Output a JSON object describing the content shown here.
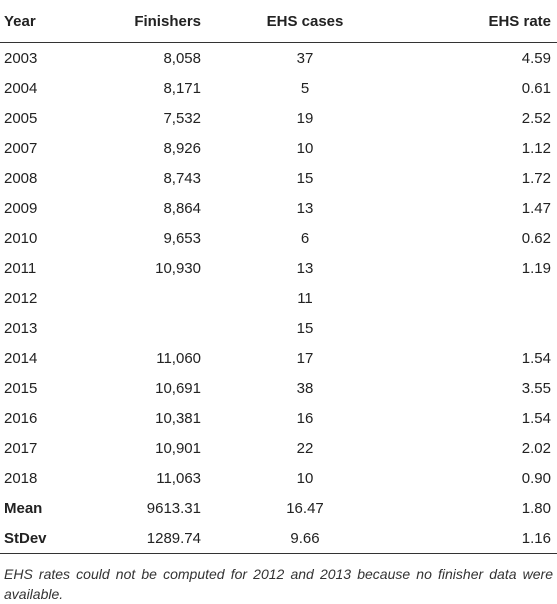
{
  "table": {
    "headers": {
      "year": "Year",
      "finishers": "Finishers",
      "cases": "EHS cases",
      "rate": "EHS rate"
    },
    "rows": [
      {
        "year": "2003",
        "finishers": "8,058",
        "cases": "37",
        "rate": "4.59"
      },
      {
        "year": "2004",
        "finishers": "8,171",
        "cases": "5",
        "rate": "0.61"
      },
      {
        "year": "2005",
        "finishers": "7,532",
        "cases": "19",
        "rate": "2.52"
      },
      {
        "year": "2007",
        "finishers": "8,926",
        "cases": "10",
        "rate": "1.12"
      },
      {
        "year": "2008",
        "finishers": "8,743",
        "cases": "15",
        "rate": "1.72"
      },
      {
        "year": "2009",
        "finishers": "8,864",
        "cases": "13",
        "rate": "1.47"
      },
      {
        "year": "2010",
        "finishers": "9,653",
        "cases": "6",
        "rate": "0.62"
      },
      {
        "year": "2011",
        "finishers": "10,930",
        "cases": "13",
        "rate": "1.19"
      },
      {
        "year": "2012",
        "finishers": "",
        "cases": "11",
        "rate": ""
      },
      {
        "year": "2013",
        "finishers": "",
        "cases": "15",
        "rate": ""
      },
      {
        "year": "2014",
        "finishers": "11,060",
        "cases": "17",
        "rate": "1.54"
      },
      {
        "year": "2015",
        "finishers": "10,691",
        "cases": "38",
        "rate": "3.55"
      },
      {
        "year": "2016",
        "finishers": "10,381",
        "cases": "16",
        "rate": "1.54"
      },
      {
        "year": "2017",
        "finishers": "10,901",
        "cases": "22",
        "rate": "2.02"
      },
      {
        "year": "2018",
        "finishers": "11,063",
        "cases": "10",
        "rate": "0.90"
      },
      {
        "year": "Mean",
        "finishers": "9613.31",
        "cases": "16.47",
        "rate": "1.80"
      },
      {
        "year": "StDev",
        "finishers": "1289.74",
        "cases": "9.66",
        "rate": "1.16"
      }
    ]
  },
  "footnote": "EHS rates could not be computed for 2012 and 2013 because no finisher data were available."
}
